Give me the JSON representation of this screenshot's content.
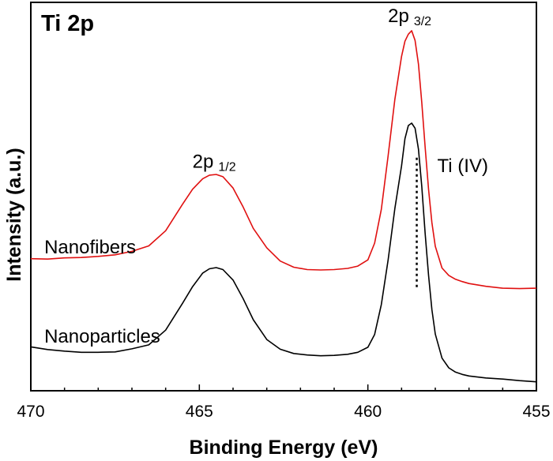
{
  "chart_data": {
    "type": "line",
    "title": "Ti 2p",
    "xlabel": "Binding Energy (eV)",
    "ylabel": "Intensity (a.u.)",
    "xlim": [
      470,
      455
    ],
    "ylim": [
      0,
      100
    ],
    "x_reversed": true,
    "xticks": [
      470,
      465,
      460,
      455
    ],
    "xtick_labels": [
      "470",
      "465",
      "460",
      "455"
    ],
    "series": [
      {
        "name": "Nanofibers",
        "color": "#e01010",
        "x": [
          470,
          469.5,
          469,
          468.5,
          468,
          467.5,
          467,
          466.5,
          466,
          465.5,
          465.2,
          464.9,
          464.7,
          464.5,
          464.3,
          464.0,
          463.7,
          463.4,
          463.0,
          462.6,
          462.2,
          461.8,
          461.4,
          461.0,
          460.6,
          460.3,
          460.0,
          459.8,
          459.6,
          459.4,
          459.2,
          459.0,
          458.9,
          458.8,
          458.7,
          458.6,
          458.5,
          458.4,
          458.3,
          458.2,
          458.1,
          458.0,
          457.8,
          457.6,
          457.4,
          457.2,
          457.0,
          456.5,
          456.0,
          455.5,
          455.0
        ],
        "values": [
          34.0,
          33.9,
          34.2,
          34.3,
          34.6,
          35.0,
          35.9,
          37.3,
          41.2,
          48.0,
          51.9,
          54.6,
          55.5,
          55.7,
          55.1,
          52.2,
          47.3,
          41.8,
          36.8,
          33.4,
          31.8,
          31.2,
          31.1,
          31.2,
          31.5,
          32.1,
          33.7,
          38.0,
          46.7,
          60.5,
          75.0,
          86.1,
          90.0,
          91.8,
          92.7,
          90.2,
          84.1,
          74.2,
          62.6,
          51.8,
          43.3,
          37.2,
          31.6,
          29.7,
          28.7,
          28.1,
          27.6,
          26.9,
          26.4,
          26.3,
          26.4
        ]
      },
      {
        "name": "Nanoparticles",
        "color": "#000000",
        "x": [
          470,
          469.5,
          469,
          468.5,
          468,
          467.5,
          467,
          466.5,
          466,
          465.5,
          465.2,
          464.9,
          464.7,
          464.5,
          464.3,
          464.0,
          463.7,
          463.4,
          463.0,
          462.6,
          462.2,
          461.8,
          461.4,
          461.0,
          460.6,
          460.3,
          460.0,
          459.8,
          459.6,
          459.4,
          459.2,
          459.0,
          458.9,
          458.8,
          458.7,
          458.6,
          458.5,
          458.4,
          458.3,
          458.2,
          458.1,
          458.0,
          457.8,
          457.6,
          457.4,
          457.2,
          457.0,
          456.5,
          456.0,
          455.5,
          455.0
        ],
        "values": [
          11.3,
          10.6,
          10.2,
          9.9,
          9.9,
          10.0,
          10.8,
          11.8,
          15.6,
          22.5,
          26.8,
          30.3,
          31.4,
          31.7,
          31.2,
          28.5,
          23.7,
          18.3,
          13.2,
          10.7,
          9.6,
          9.2,
          9.0,
          9.1,
          9.4,
          9.9,
          11.2,
          14.5,
          22.2,
          33.7,
          46.9,
          57.9,
          64.9,
          68.3,
          68.9,
          67.6,
          62.2,
          52.6,
          40.4,
          29.7,
          20.9,
          14.6,
          8.4,
          5.9,
          4.8,
          4.2,
          3.8,
          3.3,
          3.0,
          2.6,
          2.3
        ]
      }
    ],
    "annotations": {
      "peak_3_2": {
        "main": "2p",
        "sub": "3/2",
        "x": 458.7,
        "y": 96.5
      },
      "peak_1_2": {
        "main": "2p",
        "sub": "1/2",
        "x": 464.5,
        "y": 59.0
      },
      "reference": {
        "label": "Ti (IV)",
        "x": 458.55,
        "y_from": 26.5,
        "y_to": 60.0
      },
      "nanofibers_label": {
        "text": "Nanofibers",
        "x": 469.6,
        "y": 37.0
      },
      "nanoparticles_label": {
        "text": "Nanoparticles",
        "x": 469.6,
        "y": 14.0
      }
    },
    "grid": false
  }
}
